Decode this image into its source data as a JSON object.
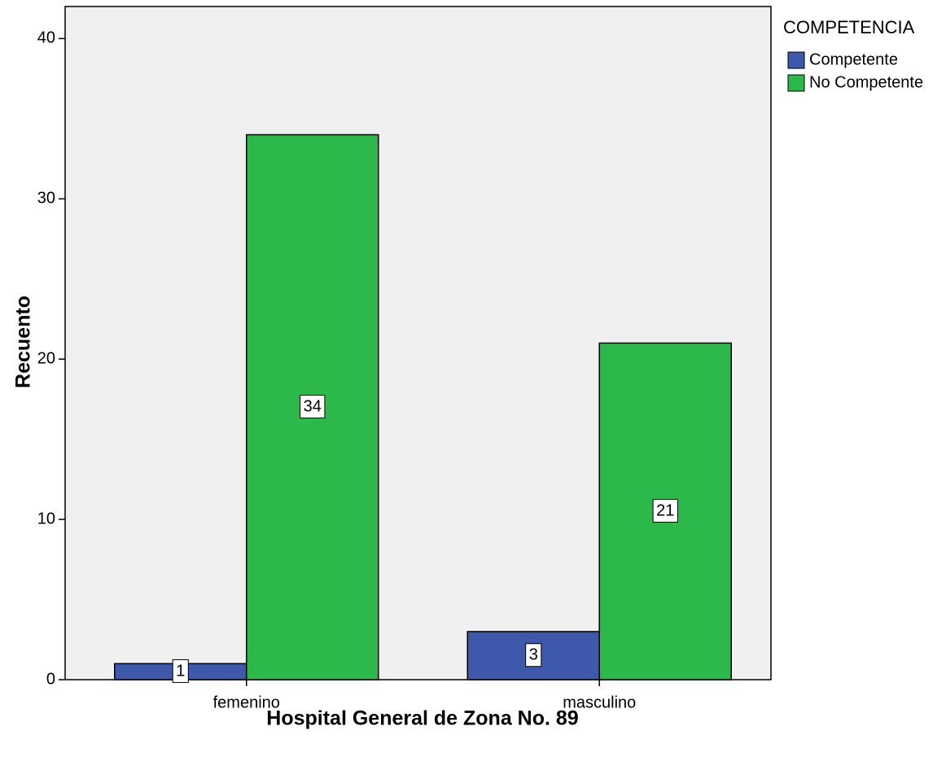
{
  "chart_data": {
    "type": "bar",
    "x_label": "Hospital General de Zona No. 89",
    "y_label": "Recuento",
    "legend_title": "COMPETENCIA",
    "categories": [
      "femenino",
      "masculino"
    ],
    "series": [
      {
        "name": "Competente",
        "color": "#3e58ac",
        "values": [
          1,
          3
        ]
      },
      {
        "name": "No Competente",
        "color": "#2db84b",
        "values": [
          34,
          21
        ]
      }
    ],
    "ylim": [
      0,
      42
    ],
    "yticks": [
      0,
      10,
      20,
      30,
      40
    ],
    "data_labels": true
  }
}
